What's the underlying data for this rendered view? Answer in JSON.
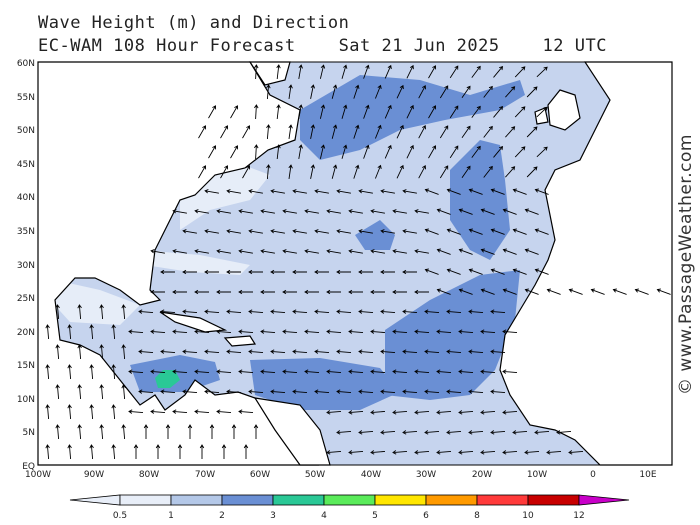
{
  "header": {
    "line1": "Wave Height (m) and Direction",
    "line2": "EC-WAM 108 Hour Forecast    Sat 21 Jun 2025    12 UTC"
  },
  "watermark": "© www.PassageWeather.com",
  "lat_labels": [
    "60N",
    "55N",
    "50N",
    "45N",
    "40N",
    "35N",
    "30N",
    "25N",
    "20N",
    "15N",
    "10N",
    "5N",
    "EQ"
  ],
  "lon_labels": [
    "100W",
    "90W",
    "80W",
    "70W",
    "60W",
    "50W",
    "40W",
    "30W",
    "20W",
    "10W",
    "0",
    "10E"
  ],
  "color_scale": {
    "labels": [
      "0.5",
      "1",
      "2",
      "3",
      "4",
      "5",
      "6",
      "8",
      "10",
      "12"
    ],
    "colors": [
      "#e8eef8",
      "#b4c8e8",
      "#9ab4e0",
      "#6a8fd4",
      "#2ac896",
      "#5aeb5a",
      "#ffe600",
      "#ff9a00",
      "#ff3a3a",
      "#c80000",
      "#c800c8"
    ]
  },
  "colors": {
    "ocean_light": "#c6d4ee",
    "ocean_mid": "#9ab4e0",
    "ocean_dark": "#6a8fd4",
    "ocean_palest": "#e6edf8",
    "land": "#ffffff",
    "coast": "#000000",
    "border": "#999999"
  }
}
